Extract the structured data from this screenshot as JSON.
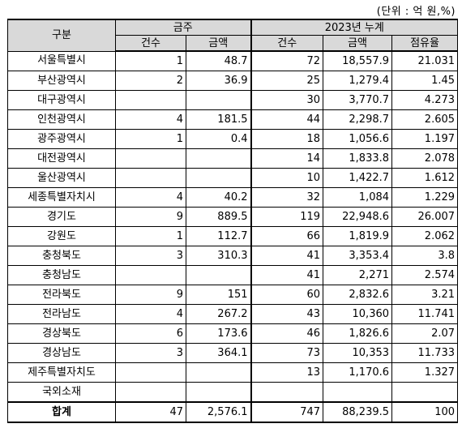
{
  "unit_note": "(단위 : 억 원,%)",
  "header": {
    "category": "구분",
    "group_week": "금주",
    "group_cum": "2023년 누계",
    "count": "건수",
    "amount": "금액",
    "cum_count": "건수",
    "cum_amount": "금액",
    "share": "점유율"
  },
  "rows": [
    {
      "name": "서울특별시",
      "wk_count": "1",
      "wk_amount": "48.7",
      "cum_count": "72",
      "cum_amount": "18,557.9",
      "share": "21.031"
    },
    {
      "name": "부산광역시",
      "wk_count": "2",
      "wk_amount": "36.9",
      "cum_count": "25",
      "cum_amount": "1,279.4",
      "share": "1.45"
    },
    {
      "name": "대구광역시",
      "wk_count": "",
      "wk_amount": "",
      "cum_count": "30",
      "cum_amount": "3,770.7",
      "share": "4.273"
    },
    {
      "name": "인천광역시",
      "wk_count": "4",
      "wk_amount": "181.5",
      "cum_count": "44",
      "cum_amount": "2,298.7",
      "share": "2.605"
    },
    {
      "name": "광주광역시",
      "wk_count": "1",
      "wk_amount": "0.4",
      "cum_count": "18",
      "cum_amount": "1,056.6",
      "share": "1.197"
    },
    {
      "name": "대전광역시",
      "wk_count": "",
      "wk_amount": "",
      "cum_count": "14",
      "cum_amount": "1,833.8",
      "share": "2.078"
    },
    {
      "name": "울산광역시",
      "wk_count": "",
      "wk_amount": "",
      "cum_count": "10",
      "cum_amount": "1,422.7",
      "share": "1.612"
    },
    {
      "name": "세종특별자치시",
      "wk_count": "4",
      "wk_amount": "40.2",
      "cum_count": "32",
      "cum_amount": "1,084",
      "share": "1.229"
    },
    {
      "name": "경기도",
      "wk_count": "9",
      "wk_amount": "889.5",
      "cum_count": "119",
      "cum_amount": "22,948.6",
      "share": "26.007"
    },
    {
      "name": "강원도",
      "wk_count": "1",
      "wk_amount": "112.7",
      "cum_count": "66",
      "cum_amount": "1,819.9",
      "share": "2.062"
    },
    {
      "name": "충청북도",
      "wk_count": "3",
      "wk_amount": "310.3",
      "cum_count": "41",
      "cum_amount": "3,353.4",
      "share": "3.8"
    },
    {
      "name": "충청남도",
      "wk_count": "",
      "wk_amount": "",
      "cum_count": "41",
      "cum_amount": "2,271",
      "share": "2.574"
    },
    {
      "name": "전라북도",
      "wk_count": "9",
      "wk_amount": "151",
      "cum_count": "60",
      "cum_amount": "2,832.6",
      "share": "3.21"
    },
    {
      "name": "전라남도",
      "wk_count": "4",
      "wk_amount": "267.2",
      "cum_count": "43",
      "cum_amount": "10,360",
      "share": "11.741"
    },
    {
      "name": "경상북도",
      "wk_count": "6",
      "wk_amount": "173.6",
      "cum_count": "46",
      "cum_amount": "1,826.6",
      "share": "2.07"
    },
    {
      "name": "경상남도",
      "wk_count": "3",
      "wk_amount": "364.1",
      "cum_count": "73",
      "cum_amount": "10,353",
      "share": "11.733"
    },
    {
      "name": "제주특별자치도",
      "wk_count": "",
      "wk_amount": "",
      "cum_count": "13",
      "cum_amount": "1,170.6",
      "share": "1.327"
    },
    {
      "name": "국외소재",
      "wk_count": "",
      "wk_amount": "",
      "cum_count": "",
      "cum_amount": "",
      "share": ""
    }
  ],
  "total": {
    "name": "합계",
    "wk_count": "47",
    "wk_amount": "2,576.1",
    "cum_count": "747",
    "cum_amount": "88,239.5",
    "share": "100"
  }
}
